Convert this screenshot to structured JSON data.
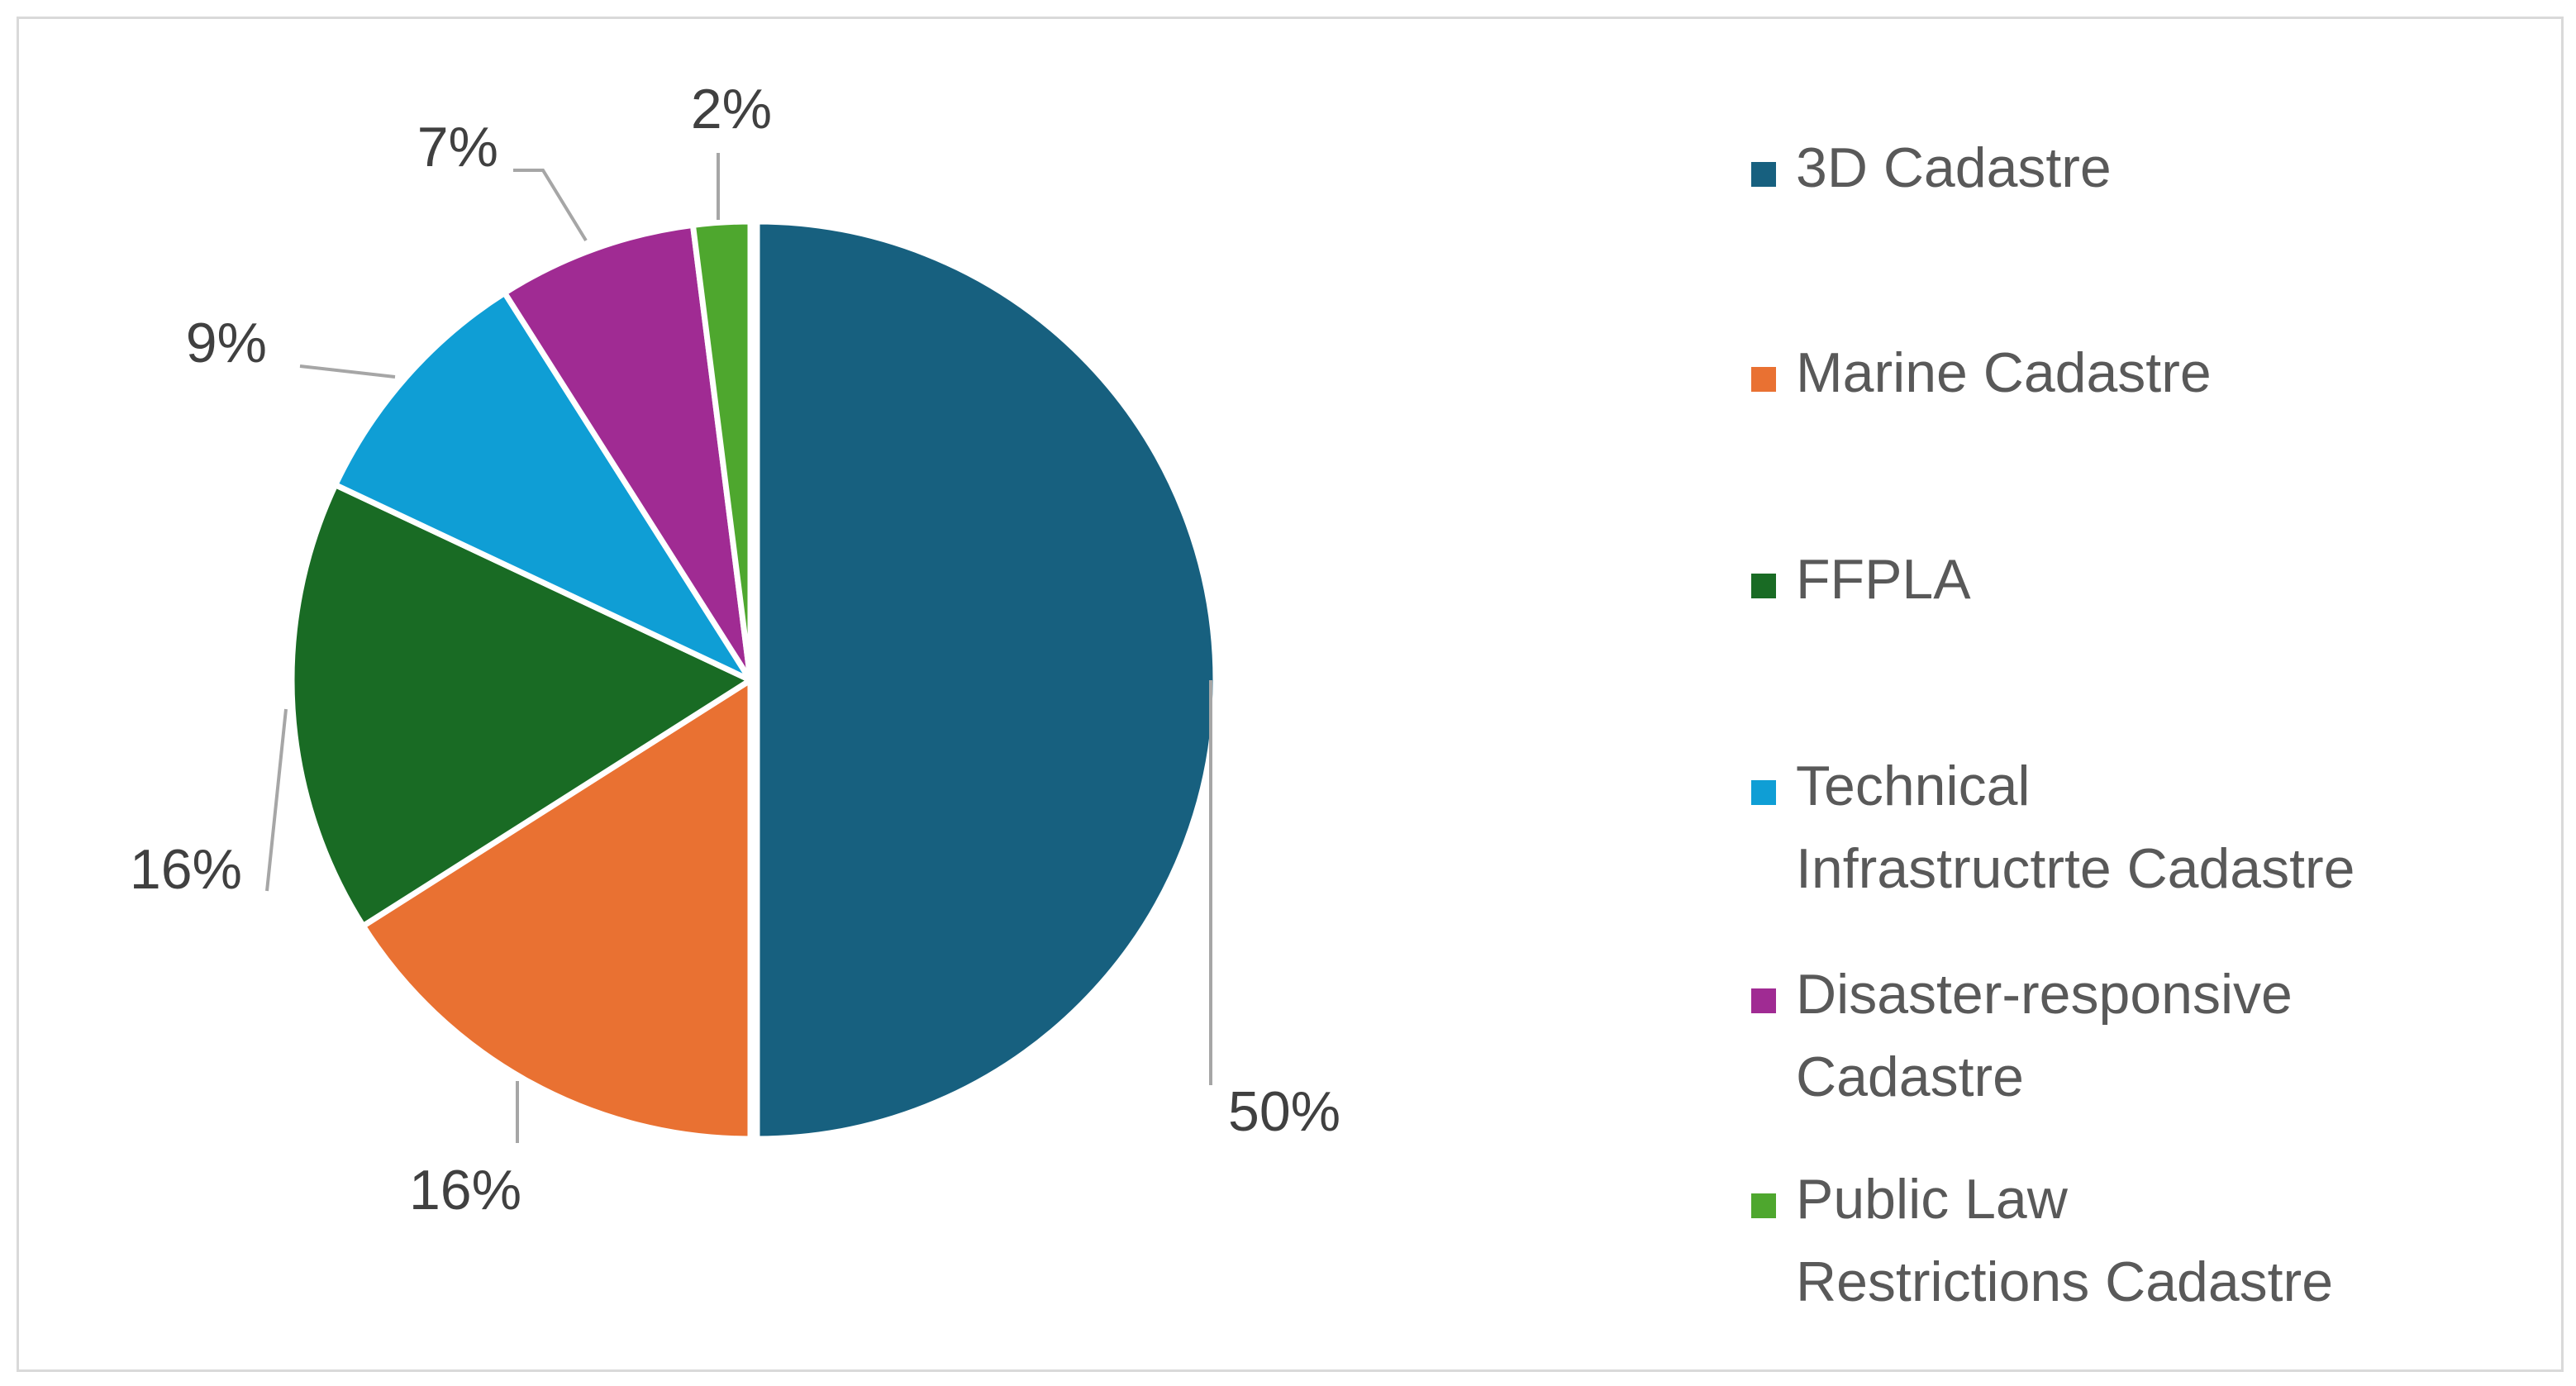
{
  "chart_data": {
    "type": "pie",
    "title": "",
    "legend_position": "right",
    "slices": [
      {
        "label": "3D Cadastre",
        "value": 50,
        "display": "50%",
        "color": "#17607f"
      },
      {
        "label": "Marine Cadastre",
        "value": 16,
        "display": "16%",
        "color": "#e97132"
      },
      {
        "label": "FFPLA",
        "value": 16,
        "display": "16%",
        "color": "#196b24"
      },
      {
        "label": "Technical\nInfrastructrte Cadastre",
        "value": 9,
        "display": "9%",
        "color": "#0f9ed5"
      },
      {
        "label": "Disaster-responsive\nCadastre",
        "value": 7,
        "display": "7%",
        "color": "#a02b93"
      },
      {
        "label": "Public Law\nRestrictions Cadastre",
        "value": 2,
        "display": "2%",
        "color": "#4ea72e"
      }
    ]
  }
}
